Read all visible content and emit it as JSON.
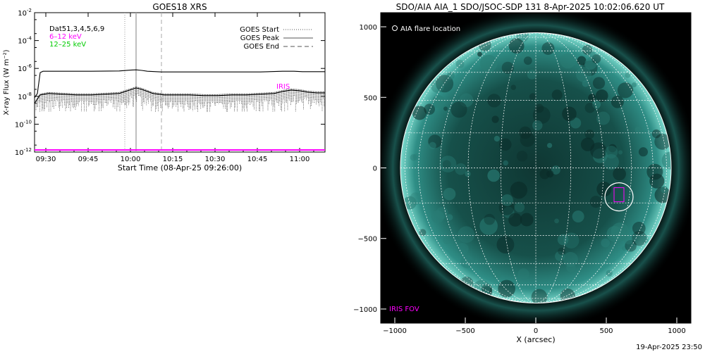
{
  "chart_data": [
    {
      "type": "line",
      "title": "GOES18 XRS",
      "xlabel": "Start Time (08-Apr-25 09:26:00)",
      "ylabel": "X-ray Flux (W m⁻²)",
      "x_tick_labels": [
        "09:30",
        "09:45",
        "10:00",
        "10:15",
        "10:30",
        "10:45",
        "11:00"
      ],
      "x_tick_minutes": [
        4,
        19,
        34,
        49,
        64,
        79,
        94
      ],
      "xlim_minutes": [
        0,
        103
      ],
      "ylim_log10": [
        -12,
        -2
      ],
      "y_tick_exponents": [
        -12,
        -10,
        -8,
        -6,
        -4,
        -2
      ],
      "y_log_scale": true,
      "legend_left": [
        {
          "text": "Dat51,3,4,5,6,9",
          "color": "#000000"
        },
        {
          "text": "6–12 keV",
          "color": "#ff00ff"
        },
        {
          "text": "12–25 keV",
          "color": "#00cc00"
        }
      ],
      "legend_right": [
        {
          "text": "GOES Start",
          "style": "dotted"
        },
        {
          "text": "GOES Peak",
          "style": "solid"
        },
        {
          "text": "GOES End",
          "style": "dashed"
        }
      ],
      "event_lines_minutes": {
        "start": 32,
        "peak": 36,
        "end": 45
      },
      "annotation": {
        "text": "IRIS",
        "color": "#ff00ff"
      },
      "series": [
        {
          "name": "",
          "color": "#000000",
          "x": [
            0,
            1,
            2,
            3,
            4,
            10,
            20,
            30,
            34,
            36,
            38,
            40,
            45,
            50,
            60,
            70,
            80,
            88,
            92,
            95,
            103
          ],
          "log10_flux": [
            -8.1,
            -7.8,
            -6.3,
            -6.2,
            -6.2,
            -6.2,
            -6.2,
            -6.18,
            -6.12,
            -6.1,
            -6.14,
            -6.2,
            -6.25,
            -6.25,
            -6.25,
            -6.25,
            -6.25,
            -6.2,
            -6.2,
            -6.23,
            -6.23
          ]
        },
        {
          "name": "",
          "color": "#000000",
          "x": [
            0,
            2,
            5,
            10,
            15,
            20,
            25,
            30,
            33,
            36,
            38,
            42,
            46,
            50,
            55,
            60,
            65,
            70,
            75,
            80,
            85,
            88,
            91,
            94,
            97,
            100,
            103
          ],
          "log10_flux": [
            -8.5,
            -7.9,
            -7.8,
            -7.85,
            -7.9,
            -7.9,
            -7.85,
            -7.8,
            -7.6,
            -7.4,
            -7.5,
            -7.8,
            -7.9,
            -7.9,
            -7.9,
            -7.95,
            -7.95,
            -7.9,
            -7.9,
            -7.85,
            -7.8,
            -7.65,
            -7.55,
            -7.6,
            -7.7,
            -7.75,
            -7.75
          ]
        },
        {
          "name": "",
          "color": "#ff00ff",
          "x": [
            0,
            103
          ],
          "log10_flux": [
            -11.85,
            -11.85
          ]
        }
      ]
    },
    {
      "type": "scatter",
      "title": "SDO/AIA AIA_1 SDO/JSOC-SDP 131  8-Apr-2025 10:02:06.620 UT",
      "xlabel": "X (arcsec)",
      "ylabel": "",
      "xlim": [
        -1100,
        1100
      ],
      "ylim": [
        -1100,
        1100
      ],
      "x_ticks": [
        -1000,
        -500,
        0,
        500,
        1000
      ],
      "y_ticks": [
        -1000,
        -500,
        0,
        500,
        1000
      ],
      "x_tick_labels": [
        "−1000",
        "−500",
        "0",
        "500",
        "1000"
      ],
      "y_tick_labels": [
        "−1000",
        "−500",
        "0",
        "500",
        "1000"
      ],
      "solar_radius_arcsec": 960,
      "grid": true,
      "legend_text": "AIA flare location",
      "iris_fov_label": "IRIS FOV",
      "flare_location": {
        "x": 590,
        "y": -205
      },
      "flare_circle_radius_arcsec": 100,
      "iris_fov_box": {
        "x": [
          555,
          625
        ],
        "y": [
          -240,
          -140
        ]
      },
      "disk_color": "#2f8e86",
      "limb_color": "#7ad9cc",
      "iris_color": "#ff00ff"
    }
  ],
  "footer": {
    "timestamp": "19-Apr-2025 23:50"
  }
}
